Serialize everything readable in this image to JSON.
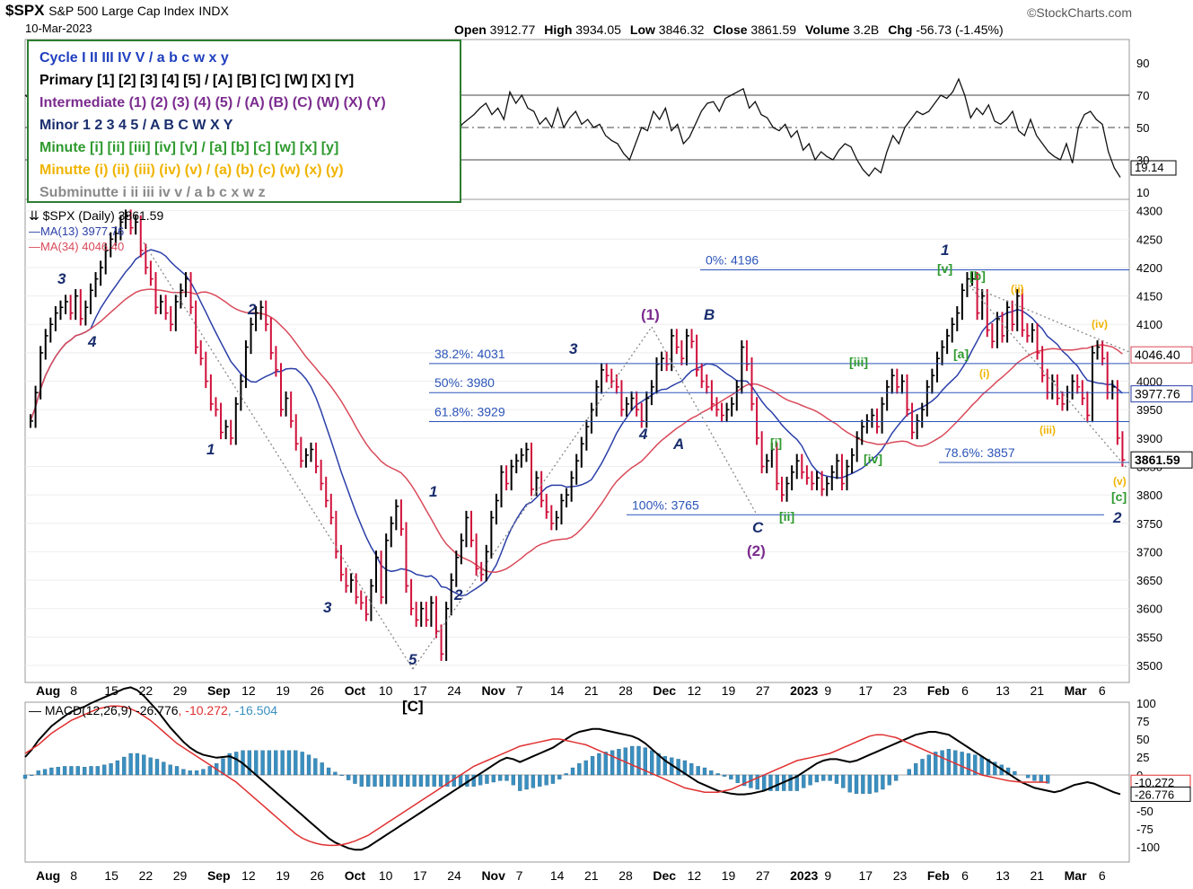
{
  "header": {
    "symbol": "$SPX",
    "name": "S&P 500 Large Cap Index",
    "exchange": "INDX",
    "date": "10-Mar-2023",
    "brand": "©StockCharts.com",
    "ohlc": [
      {
        "label": "Open",
        "value": "3912.77"
      },
      {
        "label": "High",
        "value": "3934.05"
      },
      {
        "label": "Low",
        "value": "3846.32"
      },
      {
        "label": "Close",
        "value": "3861.59"
      },
      {
        "label": "Volume",
        "value": "3.2B"
      },
      {
        "label": "Chg",
        "value": "-56.73 (-1.45%)"
      }
    ]
  },
  "legend_box": [
    {
      "text": "Cycle I II III IV V / a b c w x y",
      "color": "#1f3fbf"
    },
    {
      "text": "Primary [1] [2] [3] [4] [5] / [A] [B] [C] [W] [X] [Y]",
      "color": "#000000"
    },
    {
      "text": "Intermediate (1) (2) (3) (4) (5) / (A) (B) (C) (W) (X) (Y)",
      "color": "#7b2c8f"
    },
    {
      "text": "Minor 1 2 3 4 5 / A B C W X Y",
      "color": "#1a2e6e"
    },
    {
      "text": "Minute [i] [ii] [iii] [iv] [v] / [a] [b] [c] [w] [x] [y]",
      "color": "#2e9a2e"
    },
    {
      "text": "Minutte (i) (ii) (iii) (iv) (v) / (a) (b) (c) (w) (x) (y)",
      "color": "#f0b400"
    },
    {
      "text": "Subminutte i ii iii iv v / a b c x w z",
      "color": "#8a8a8a"
    }
  ],
  "colors": {
    "up": "#000000",
    "down": "#d0103a",
    "ma13": "#2b3fa8",
    "ma34": "#d94a5a",
    "fib": "#2b54b8",
    "macd": "#000000",
    "signal": "#e03030",
    "hist": "#3a8fc0"
  },
  "chart_data": [
    {
      "type": "line",
      "panel": "RSI",
      "ylim": [
        0,
        100
      ],
      "yticks": [
        10,
        30,
        50,
        70,
        90
      ],
      "current": "19.14",
      "guide_levels": [
        30,
        50,
        70
      ],
      "values": [
        70,
        67,
        72,
        74,
        70,
        66,
        71,
        60,
        62,
        56,
        48,
        46,
        38,
        42,
        40,
        30,
        33,
        28,
        31,
        22,
        25,
        20,
        16,
        22,
        30,
        26,
        34,
        30,
        44,
        48,
        40,
        52,
        55,
        60,
        60,
        70,
        56,
        48,
        42,
        48,
        60,
        58,
        45,
        50,
        52,
        58,
        52,
        57,
        70,
        72,
        74,
        72,
        70,
        65,
        60,
        58,
        50,
        42,
        48,
        52,
        50,
        35,
        30,
        36,
        28,
        30,
        40,
        34,
        42,
        45,
        48,
        45,
        45,
        52,
        55,
        58,
        62,
        65,
        58,
        62,
        55,
        72,
        65,
        70,
        62,
        60,
        52,
        56,
        50,
        62,
        50,
        56,
        60,
        52,
        55,
        50,
        52,
        45,
        42,
        40,
        34,
        30,
        40,
        50,
        48,
        60,
        55,
        62,
        48,
        52,
        40,
        44,
        52,
        60,
        65,
        66,
        60,
        68,
        70,
        72,
        74,
        62,
        66,
        58,
        56,
        50,
        48,
        52,
        44,
        48,
        36,
        40,
        30,
        35,
        32,
        30,
        36,
        40,
        38,
        30,
        24,
        20,
        25,
        22,
        35,
        45,
        40,
        50,
        55,
        60,
        58,
        60,
        65,
        70,
        68,
        72,
        80,
        70,
        56,
        62,
        58,
        64,
        54,
        52,
        55,
        60,
        48,
        45,
        55,
        45,
        40,
        35,
        32,
        30,
        40,
        28,
        50,
        58,
        60,
        55,
        52,
        35,
        25,
        19.14
      ]
    },
    {
      "type": "bar",
      "panel": "price",
      "series_label": "$SPX (Daily)",
      "last": "3861.59",
      "ylim": [
        3470,
        4320
      ],
      "yticks": [
        3500,
        3550,
        3600,
        3650,
        3700,
        3750,
        3800,
        3850,
        3900,
        3950,
        4000,
        4050,
        4100,
        4150,
        4200,
        4250,
        4300
      ],
      "moving_averages": [
        {
          "name": "MA(13)",
          "value": "3977.76"
        },
        {
          "name": "MA(34)",
          "value": "4046.40"
        }
      ],
      "x_ticks": [
        "Aug",
        "8",
        "15",
        "22",
        "29",
        "Sep",
        "12",
        "19",
        "26",
        "Oct",
        "10",
        "17",
        "24",
        "Nov",
        "7",
        "14",
        "21",
        "28",
        "Dec",
        "12",
        "19",
        "27",
        "2023",
        "9",
        "17",
        "23",
        "Feb",
        "6",
        "13",
        "21",
        "Mar",
        "6"
      ],
      "closes": [
        3930,
        3980,
        4050,
        4080,
        4100,
        4120,
        4130,
        4140,
        4120,
        4150,
        4110,
        4130,
        4160,
        4180,
        4200,
        4230,
        4250,
        4260,
        4280,
        4290,
        4270,
        4280,
        4230,
        4200,
        4180,
        4130,
        4140,
        4120,
        4100,
        4140,
        4160,
        4180,
        4130,
        4060,
        4040,
        4000,
        3960,
        3950,
        3910,
        3920,
        3900,
        3960,
        4000,
        4060,
        4100,
        4120,
        4130,
        4100,
        4050,
        4020,
        3950,
        3970,
        3930,
        3890,
        3860,
        3870,
        3880,
        3850,
        3820,
        3790,
        3760,
        3700,
        3660,
        3640,
        3650,
        3620,
        3610,
        3590,
        3640,
        3690,
        3620,
        3720,
        3750,
        3780,
        3740,
        3640,
        3600,
        3580,
        3600,
        3580,
        3610,
        3560,
        3520,
        3600,
        3650,
        3690,
        3720,
        3760,
        3720,
        3670,
        3660,
        3700,
        3760,
        3790,
        3840,
        3820,
        3850,
        3860,
        3870,
        3880,
        3810,
        3830,
        3790,
        3770,
        3750,
        3760,
        3790,
        3800,
        3830,
        3860,
        3890,
        3920,
        3950,
        3990,
        4020,
        4010,
        4000,
        3990,
        3950,
        3960,
        3970,
        3950,
        3930,
        3970,
        3990,
        4030,
        4040,
        4030,
        4080,
        4060,
        4040,
        4080,
        4070,
        4020,
        4000,
        3990,
        3960,
        3950,
        3940,
        3950,
        3960,
        3990,
        4060,
        4030,
        3960,
        3900,
        3850,
        3860,
        3880,
        3820,
        3800,
        3820,
        3840,
        3860,
        3840,
        3830,
        3820,
        3830,
        3810,
        3820,
        3840,
        3860,
        3820,
        3850,
        3870,
        3900,
        3920,
        3930,
        3940,
        3920,
        3960,
        3990,
        4010,
        3990,
        4000,
        3950,
        3910,
        3930,
        3950,
        3990,
        4010,
        4040,
        4060,
        4080,
        4100,
        4120,
        4160,
        4180,
        4180,
        4120,
        4150,
        4090,
        4070,
        4110,
        4080,
        4130,
        4100,
        4150,
        4090,
        4080,
        4090,
        4050,
        4010,
        3980,
        4000,
        3970,
        3960,
        3980,
        4000,
        3990,
        3970,
        3940,
        4050,
        4060,
        4040,
        3980,
        3990,
        3900,
        3861.59
      ],
      "fib_levels": [
        {
          "label": "0%: 4196",
          "value": 4196
        },
        {
          "label": "38.2%: 4031",
          "value": 4031
        },
        {
          "label": "50%: 3980",
          "value": 3980
        },
        {
          "label": "61.8%: 3929",
          "value": 3929
        },
        {
          "label": "78.6%: 3857",
          "value": 3857
        },
        {
          "label": "100%: 3765",
          "value": 3765
        }
      ],
      "wave_labels": [
        {
          "text": "3",
          "color": "#1a2e6e"
        },
        {
          "text": "4",
          "color": "#1a2e6e"
        },
        {
          "text": "1",
          "color": "#1a2e6e"
        },
        {
          "text": "2",
          "color": "#1a2e6e"
        },
        {
          "text": "3",
          "color": "#1a2e6e"
        },
        {
          "text": "5",
          "color": "#1a2e6e"
        },
        {
          "text": "[C]",
          "color": "#000000"
        },
        {
          "text": "1",
          "color": "#1a2e6e"
        },
        {
          "text": "2",
          "color": "#1a2e6e"
        },
        {
          "text": "3",
          "color": "#1a2e6e"
        },
        {
          "text": "4",
          "color": "#1a2e6e"
        },
        {
          "text": "(1)",
          "color": "#7b2c8f"
        },
        {
          "text": "A",
          "color": "#1a2e6e"
        },
        {
          "text": "B",
          "color": "#1a2e6e"
        },
        {
          "text": "C",
          "color": "#1a2e6e"
        },
        {
          "text": "(2)",
          "color": "#7b2c8f"
        },
        {
          "text": "[i]",
          "color": "#2e9a2e"
        },
        {
          "text": "[ii]",
          "color": "#2e9a2e"
        },
        {
          "text": "[iii]",
          "color": "#2e9a2e"
        },
        {
          "text": "[iv]",
          "color": "#2e9a2e"
        },
        {
          "text": "1",
          "color": "#1a2e6e"
        },
        {
          "text": "[v]",
          "color": "#2e9a2e"
        },
        {
          "text": "[b]",
          "color": "#2e9a2e"
        },
        {
          "text": "[a]",
          "color": "#2e9a2e"
        },
        {
          "text": "(ii)",
          "color": "#f0b400"
        },
        {
          "text": "(i)",
          "color": "#f0b400"
        },
        {
          "text": "(iv)",
          "color": "#f0b400"
        },
        {
          "text": "(iii)",
          "color": "#f0b400"
        },
        {
          "text": "(v)",
          "color": "#f0b400"
        },
        {
          "text": "[c]",
          "color": "#2e9a2e"
        },
        {
          "text": "2",
          "color": "#1a2e6e"
        }
      ]
    },
    {
      "type": "bar",
      "panel": "MACD",
      "legend": "MACD(12,26,9)",
      "macd_label": "-26.776",
      "signal_label": "-10.272",
      "hist_label": "-16.504",
      "ylim": [
        -110,
        110
      ],
      "yticks": [
        100,
        75,
        50,
        25,
        0,
        -25,
        -50,
        -75,
        -100
      ],
      "macd": [
        25,
        35,
        48,
        58,
        68,
        75,
        82,
        88,
        92,
        95,
        100,
        104,
        108,
        112,
        116,
        120,
        122,
        118,
        110,
        100,
        90,
        78,
        66,
        56,
        46,
        38,
        32,
        28,
        26,
        24,
        25,
        26,
        22,
        16,
        8,
        0,
        -8,
        -16,
        -24,
        -32,
        -40,
        -48,
        -56,
        -64,
        -72,
        -80,
        -88,
        -94,
        -98,
        -102,
        -104,
        -104,
        -100,
        -94,
        -88,
        -82,
        -76,
        -70,
        -64,
        -58,
        -52,
        -46,
        -40,
        -34,
        -28,
        -22,
        -16,
        -10,
        -4,
        2,
        8,
        14,
        20,
        24,
        22,
        18,
        22,
        26,
        30,
        34,
        38,
        44,
        50,
        56,
        60,
        62,
        64,
        64,
        62,
        60,
        58,
        56,
        54,
        50,
        44,
        36,
        28,
        20,
        14,
        8,
        2,
        -4,
        -10,
        -14,
        -18,
        -22,
        -24,
        -26,
        -27,
        -27,
        -26,
        -24,
        -22,
        -18,
        -14,
        -10,
        -6,
        -2,
        4,
        10,
        16,
        20,
        22,
        22,
        20,
        18,
        20,
        24,
        28,
        32,
        36,
        40,
        44,
        48,
        52,
        56,
        58,
        60,
        60,
        58,
        56,
        50,
        44,
        38,
        32,
        26,
        20,
        14,
        8,
        2,
        -4,
        -10,
        -14,
        -18,
        -20,
        -22,
        -24,
        -22,
        -18,
        -14,
        -12,
        -10,
        -12,
        -16,
        -20,
        -24,
        -26.776
      ],
      "signal": [
        30,
        36,
        42,
        50,
        58,
        64,
        70,
        76,
        80,
        84,
        88,
        92,
        94,
        96,
        96,
        95,
        92,
        88,
        82,
        76,
        68,
        60,
        52,
        44,
        38,
        32,
        26,
        20,
        14,
        8,
        2,
        -4,
        -10,
        -18,
        -26,
        -34,
        -42,
        -50,
        -58,
        -66,
        -74,
        -82,
        -88,
        -92,
        -95,
        -97,
        -98,
        -98,
        -97,
        -95,
        -92,
        -88,
        -84,
        -78,
        -72,
        -66,
        -60,
        -54,
        -48,
        -42,
        -36,
        -30,
        -24,
        -18,
        -12,
        -6,
        0,
        6,
        12,
        16,
        20,
        24,
        28,
        32,
        36,
        40,
        42,
        44,
        46,
        48,
        50,
        50,
        48,
        46,
        44,
        42,
        38,
        34,
        30,
        26,
        22,
        18,
        14,
        10,
        6,
        2,
        -2,
        -6,
        -10,
        -14,
        -18,
        -20,
        -22,
        -24,
        -24,
        -24,
        -22,
        -20,
        -16,
        -12,
        -8,
        -4,
        0,
        4,
        8,
        12,
        16,
        20,
        22,
        24,
        26,
        28,
        30,
        34,
        38,
        42,
        46,
        50,
        54,
        56,
        56,
        54,
        52,
        48,
        44,
        40,
        36,
        32,
        28,
        24,
        20,
        16,
        12,
        8,
        4,
        0,
        -2,
        -4,
        -6,
        -8,
        -9,
        -10,
        -10,
        -10,
        -10,
        -10.272
      ]
    }
  ]
}
